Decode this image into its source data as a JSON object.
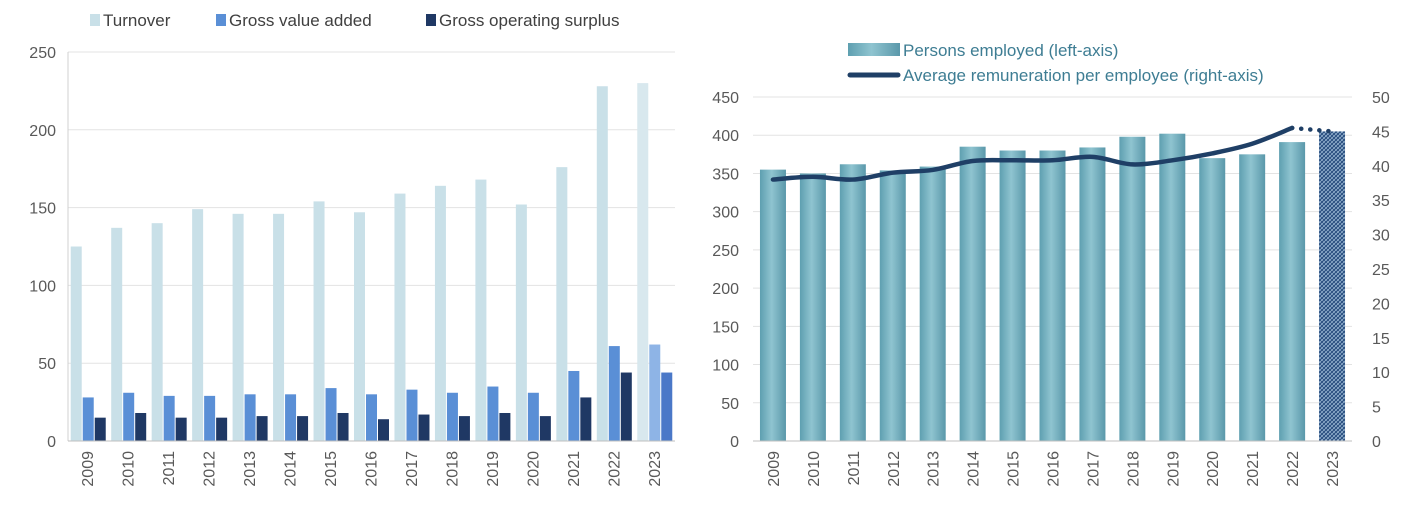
{
  "chart_data": [
    {
      "type": "bar",
      "categories": [
        "2009",
        "2010",
        "2011",
        "2012",
        "2013",
        "2014",
        "2015",
        "2016",
        "2017",
        "2018",
        "2019",
        "2020",
        "2021",
        "2022",
        "2023"
      ],
      "ylim": [
        0,
        250
      ],
      "yticks": [
        0,
        50,
        100,
        150,
        200,
        250
      ],
      "grid": true,
      "legend_position": "top",
      "series": [
        {
          "name": "Turnover",
          "color": "#c9e0e8",
          "values": [
            125,
            137,
            140,
            149,
            146,
            146,
            154,
            147,
            159,
            164,
            168,
            152,
            176,
            228,
            230
          ]
        },
        {
          "name": "Gross value added",
          "color": "#5a8fd6",
          "values": [
            28,
            31,
            29,
            29,
            30,
            30,
            34,
            30,
            33,
            31,
            35,
            31,
            45,
            61,
            62
          ]
        },
        {
          "name": "Gross operating surplus",
          "color": "#1f3864",
          "values": [
            15,
            18,
            15,
            15,
            16,
            16,
            18,
            14,
            17,
            16,
            18,
            16,
            28,
            44,
            44
          ]
        }
      ],
      "estimate_colors": {
        "Turnover": "#d8e8ee",
        "Gross value added": "#8eb4e6",
        "Gross operating surplus": "#4a78c8"
      }
    },
    {
      "type": "bar",
      "categories": [
        "2009",
        "2010",
        "2011",
        "2012",
        "2013",
        "2014",
        "2015",
        "2016",
        "2017",
        "2018",
        "2019",
        "2020",
        "2021",
        "2022",
        "2023"
      ],
      "ylim": [
        0,
        450
      ],
      "yticks": [
        0,
        50,
        100,
        150,
        200,
        250,
        300,
        350,
        400,
        450
      ],
      "y2lim": [
        0,
        50
      ],
      "y2ticks": [
        0,
        5,
        10,
        15,
        20,
        25,
        30,
        35,
        40,
        45,
        50
      ],
      "grid": true,
      "legend_position": "top",
      "series": [
        {
          "name": "Persons employed (left-axis)",
          "type": "bar",
          "axis": "left",
          "color": "#6fb1c0",
          "values": [
            355,
            350,
            362,
            354,
            359,
            385,
            380,
            380,
            384,
            398,
            402,
            370,
            375,
            391,
            405
          ]
        },
        {
          "name": "Average remuneration per employee (right-axis)",
          "type": "line",
          "axis": "right",
          "color": "#1f3f66",
          "values": [
            38.0,
            38.4,
            38.0,
            39.0,
            39.4,
            40.7,
            40.8,
            40.8,
            41.3,
            40.2,
            40.8,
            41.8,
            43.2,
            45.5,
            45.0
          ]
        }
      ]
    }
  ]
}
